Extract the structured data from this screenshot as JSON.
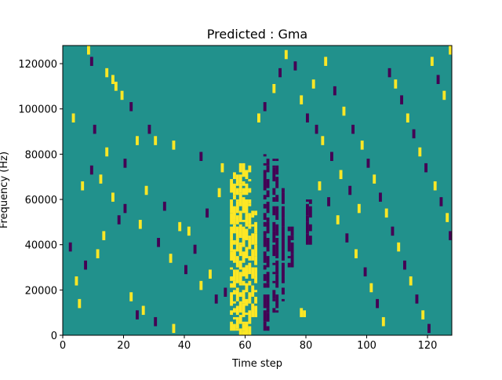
{
  "chart_data": {
    "type": "heatmap",
    "title": "Predicted : Gma",
    "xlabel": "Time step",
    "ylabel": "Frequency (Hz)",
    "xlim": [
      0,
      128
    ],
    "ylim": [
      0,
      128000
    ],
    "xticks": [
      0,
      20,
      40,
      60,
      80,
      100,
      120
    ],
    "yticks": [
      0,
      20000,
      40000,
      60000,
      80000,
      100000,
      120000
    ],
    "xtick_labels": [
      "0",
      "20",
      "40",
      "60",
      "80",
      "100",
      "120"
    ],
    "ytick_labels": [
      "0",
      "20000",
      "40000",
      "60000",
      "80000",
      "100000",
      "120000"
    ],
    "n_time_steps": 128,
    "n_frequency_bins": 128,
    "levels": [
      -1,
      0,
      1
    ],
    "colors": {
      "-1": "#440154",
      "0": "#21918c",
      "1": "#fde725"
    },
    "background_level": 0,
    "grid": false,
    "legend": "none",
    "bursts": [
      {
        "t": [
          55,
          58
        ],
        "f": [
          2000,
          72000
        ],
        "value": 1
      },
      {
        "t": [
          58,
          62
        ],
        "f": [
          0,
          76000
        ],
        "value": 1
      },
      {
        "t": [
          62,
          64
        ],
        "f": [
          8000,
          55000
        ],
        "value": 1
      },
      {
        "t": [
          66,
          68
        ],
        "f": [
          2000,
          80000
        ],
        "value": -1
      },
      {
        "t": [
          69,
          71
        ],
        "f": [
          10000,
          78000
        ],
        "value": -1
      },
      {
        "t": [
          72,
          73
        ],
        "f": [
          15000,
          65000
        ],
        "value": -1
      },
      {
        "t": [
          74,
          76
        ],
        "f": [
          30000,
          48000
        ],
        "value": -1
      },
      {
        "t": [
          78,
          80
        ],
        "f": [
          8000,
          12000
        ],
        "value": 1
      },
      {
        "t": [
          80,
          82
        ],
        "f": [
          40000,
          60000
        ],
        "value": -1
      }
    ],
    "cells": [
      [
        8,
        126000,
        1
      ],
      [
        9,
        121000,
        -1
      ],
      [
        14,
        116000,
        1
      ],
      [
        16,
        113000,
        1
      ],
      [
        17,
        110000,
        1
      ],
      [
        19,
        106000,
        1
      ],
      [
        22,
        101000,
        -1
      ],
      [
        3,
        96000,
        1
      ],
      [
        10,
        91000,
        -1
      ],
      [
        24,
        86000,
        1
      ],
      [
        28,
        91000,
        -1
      ],
      [
        30,
        86000,
        1
      ],
      [
        36,
        84000,
        1
      ],
      [
        45,
        79000,
        -1
      ],
      [
        52,
        74000,
        1
      ],
      [
        12,
        69000,
        1
      ],
      [
        16,
        61000,
        1
      ],
      [
        20,
        56000,
        -1
      ],
      [
        25,
        49000,
        1
      ],
      [
        31,
        41000,
        -1
      ],
      [
        35,
        34000,
        1
      ],
      [
        40,
        29000,
        -1
      ],
      [
        45,
        22000,
        1
      ],
      [
        50,
        16000,
        -1
      ],
      [
        26,
        11000,
        1
      ],
      [
        30,
        6000,
        -1
      ],
      [
        36,
        3000,
        1
      ],
      [
        41,
        46000,
        1
      ],
      [
        47,
        54000,
        -1
      ],
      [
        51,
        63000,
        1
      ],
      [
        4,
        24000,
        1
      ],
      [
        7,
        31000,
        -1
      ],
      [
        11,
        36000,
        1
      ],
      [
        13,
        44000,
        1
      ],
      [
        18,
        51000,
        -1
      ],
      [
        22,
        17000,
        1
      ],
      [
        24,
        9000,
        -1
      ],
      [
        5,
        14000,
        1
      ],
      [
        2,
        39000,
        -1
      ],
      [
        6,
        66000,
        1
      ],
      [
        9,
        73000,
        -1
      ],
      [
        14,
        81000,
        1
      ],
      [
        20,
        76000,
        -1
      ],
      [
        27,
        64000,
        1
      ],
      [
        33,
        57000,
        -1
      ],
      [
        38,
        48000,
        1
      ],
      [
        43,
        38000,
        -1
      ],
      [
        48,
        27000,
        1
      ],
      [
        53,
        19000,
        -1
      ],
      [
        86,
        121000,
        1
      ],
      [
        89,
        108000,
        -1
      ],
      [
        92,
        99000,
        1
      ],
      [
        95,
        91000,
        -1
      ],
      [
        98,
        84000,
        1
      ],
      [
        100,
        76000,
        -1
      ],
      [
        102,
        69000,
        1
      ],
      [
        104,
        61000,
        -1
      ],
      [
        106,
        54000,
        1
      ],
      [
        108,
        46000,
        -1
      ],
      [
        110,
        39000,
        1
      ],
      [
        112,
        31000,
        -1
      ],
      [
        114,
        24000,
        1
      ],
      [
        116,
        16000,
        -1
      ],
      [
        118,
        9000,
        1
      ],
      [
        120,
        3000,
        -1
      ],
      [
        122,
        66000,
        1
      ],
      [
        124,
        59000,
        -1
      ],
      [
        126,
        52000,
        1
      ],
      [
        127,
        44000,
        -1
      ],
      [
        84,
        66000,
        1
      ],
      [
        87,
        59000,
        -1
      ],
      [
        90,
        51000,
        1
      ],
      [
        93,
        43000,
        -1
      ],
      [
        96,
        36000,
        1
      ],
      [
        99,
        28000,
        -1
      ],
      [
        101,
        21000,
        1
      ],
      [
        103,
        14000,
        -1
      ],
      [
        105,
        6000,
        1
      ],
      [
        107,
        116000,
        -1
      ],
      [
        109,
        111000,
        1
      ],
      [
        111,
        104000,
        -1
      ],
      [
        113,
        96000,
        1
      ],
      [
        115,
        89000,
        -1
      ],
      [
        117,
        81000,
        1
      ],
      [
        119,
        74000,
        -1
      ],
      [
        121,
        121000,
        1
      ],
      [
        123,
        113000,
        -1
      ],
      [
        125,
        106000,
        1
      ],
      [
        127,
        126000,
        1
      ],
      [
        83,
        91000,
        -1
      ],
      [
        85,
        86000,
        1
      ],
      [
        88,
        79000,
        -1
      ],
      [
        91,
        71000,
        1
      ],
      [
        94,
        64000,
        -1
      ],
      [
        97,
        56000,
        1
      ],
      [
        64,
        96000,
        1
      ],
      [
        66,
        101000,
        -1
      ],
      [
        69,
        109000,
        1
      ],
      [
        71,
        116000,
        -1
      ],
      [
        73,
        124000,
        1
      ],
      [
        76,
        119000,
        -1
      ],
      [
        78,
        104000,
        1
      ],
      [
        80,
        96000,
        -1
      ],
      [
        82,
        111000,
        1
      ]
    ]
  }
}
